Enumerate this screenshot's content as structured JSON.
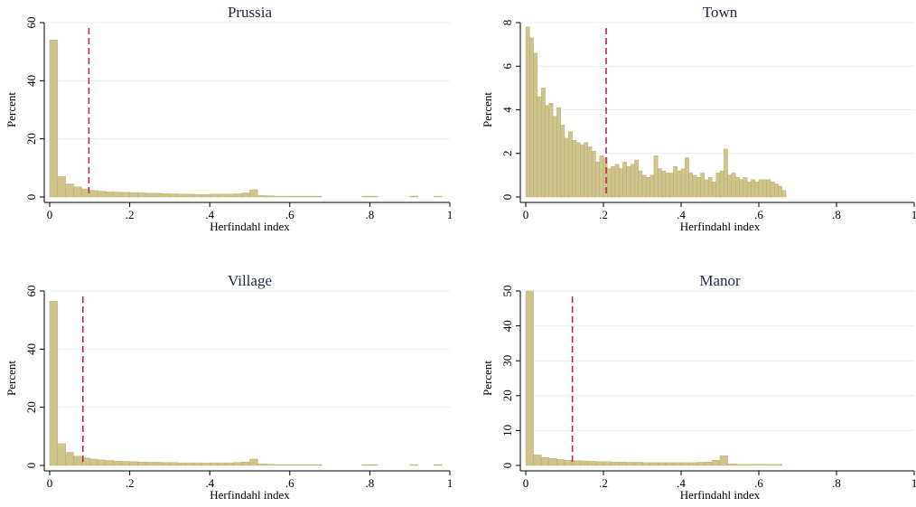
{
  "colors": {
    "bar_fill": "#cfc58c",
    "bar_stroke": "#b2a762",
    "reference_line": "#c0254f",
    "grid": "#e8eef2",
    "title": "#1e2a4a"
  },
  "chart_data": [
    {
      "type": "bar",
      "subtype": "histogram",
      "title": "Prussia",
      "xlabel": "Herfindahl index",
      "ylabel": "Percent",
      "xlim": [
        0,
        1
      ],
      "ylim": [
        0,
        60
      ],
      "xticks": [
        "0",
        ".2",
        ".4",
        ".6",
        ".8",
        "1"
      ],
      "yticks": [
        "0",
        "20",
        "40",
        "60"
      ],
      "grid": true,
      "bin_width": 0.02,
      "reference_line_x": 0.098,
      "x": [
        0.01,
        0.03,
        0.05,
        0.07,
        0.09,
        0.11,
        0.13,
        0.15,
        0.17,
        0.19,
        0.21,
        0.23,
        0.25,
        0.27,
        0.29,
        0.31,
        0.33,
        0.35,
        0.37,
        0.39,
        0.41,
        0.43,
        0.45,
        0.47,
        0.49,
        0.51,
        0.53,
        0.55,
        0.57,
        0.59,
        0.61,
        0.63,
        0.65,
        0.67,
        0.79,
        0.81,
        0.91,
        0.97
      ],
      "values": [
        54,
        7,
        4.5,
        3.5,
        2.8,
        2.3,
        2,
        1.8,
        1.7,
        1.6,
        1.5,
        1.4,
        1.3,
        1.3,
        1.2,
        1.1,
        1.0,
        1.0,
        0.9,
        0.9,
        1.0,
        1.0,
        1.0,
        1.1,
        1.4,
        2.5,
        0.5,
        0.4,
        0.3,
        0.3,
        0.3,
        0.3,
        0.3,
        0.3,
        0.3,
        0.3,
        0.3,
        0.3
      ]
    },
    {
      "type": "bar",
      "subtype": "histogram",
      "title": "Town",
      "xlabel": "Herfindahl index",
      "ylabel": "Percent",
      "xlim": [
        0,
        1
      ],
      "ylim": [
        0,
        8
      ],
      "xticks": [
        "0",
        ".2",
        ".4",
        ".6",
        ".8",
        "1"
      ],
      "yticks": [
        "0",
        "2",
        "4",
        "6",
        "8"
      ],
      "grid": true,
      "bin_width": 0.01,
      "reference_line_x": 0.207,
      "x": [
        0.005,
        0.015,
        0.025,
        0.035,
        0.045,
        0.055,
        0.065,
        0.075,
        0.085,
        0.095,
        0.105,
        0.115,
        0.125,
        0.135,
        0.145,
        0.155,
        0.165,
        0.175,
        0.185,
        0.195,
        0.205,
        0.215,
        0.225,
        0.235,
        0.245,
        0.255,
        0.265,
        0.275,
        0.285,
        0.295,
        0.305,
        0.315,
        0.325,
        0.335,
        0.345,
        0.355,
        0.365,
        0.375,
        0.385,
        0.395,
        0.405,
        0.415,
        0.425,
        0.435,
        0.445,
        0.455,
        0.465,
        0.475,
        0.485,
        0.495,
        0.505,
        0.515,
        0.525,
        0.535,
        0.545,
        0.555,
        0.565,
        0.575,
        0.585,
        0.595,
        0.605,
        0.615,
        0.625,
        0.635,
        0.645,
        0.655,
        0.665
      ],
      "values": [
        7.8,
        7.3,
        6.6,
        4.6,
        5.0,
        4.2,
        4.3,
        3.7,
        4.1,
        3.3,
        2.7,
        3.0,
        2.6,
        2.5,
        2.4,
        2.5,
        2.3,
        2.1,
        1.6,
        1.9,
        1.8,
        1.3,
        1.4,
        1.5,
        1.3,
        1.6,
        1.4,
        1.5,
        1.7,
        1.2,
        1.0,
        0.9,
        1.0,
        1.9,
        1.3,
        1.2,
        1.1,
        1.1,
        1.4,
        1.2,
        1.3,
        1.8,
        1.1,
        1.0,
        0.9,
        1.1,
        0.8,
        0.9,
        0.7,
        1.1,
        1.2,
        2.2,
        1.0,
        1.1,
        0.9,
        0.8,
        0.9,
        0.7,
        0.8,
        0.7,
        0.8,
        0.8,
        0.8,
        0.7,
        0.6,
        0.5,
        0.3
      ]
    },
    {
      "type": "bar",
      "subtype": "histogram",
      "title": "Village",
      "xlabel": "Herfindahl index",
      "ylabel": "Percent",
      "xlim": [
        0,
        1
      ],
      "ylim": [
        0,
        60
      ],
      "xticks": [
        "0",
        ".2",
        ".4",
        ".6",
        ".8",
        "1"
      ],
      "yticks": [
        "0",
        "20",
        "40",
        "60"
      ],
      "grid": true,
      "bin_width": 0.02,
      "reference_line_x": 0.083,
      "x": [
        0.01,
        0.03,
        0.05,
        0.07,
        0.09,
        0.11,
        0.13,
        0.15,
        0.17,
        0.19,
        0.21,
        0.23,
        0.25,
        0.27,
        0.29,
        0.31,
        0.33,
        0.35,
        0.37,
        0.39,
        0.41,
        0.43,
        0.45,
        0.47,
        0.49,
        0.51,
        0.53,
        0.55,
        0.57,
        0.59,
        0.61,
        0.63,
        0.65,
        0.67,
        0.79,
        0.81,
        0.91,
        0.97
      ],
      "values": [
        56.5,
        7.5,
        4.5,
        3.2,
        2.6,
        2.2,
        1.9,
        1.7,
        1.5,
        1.4,
        1.3,
        1.2,
        1.1,
        1.1,
        1.0,
        1.0,
        0.9,
        0.9,
        0.9,
        0.8,
        0.9,
        0.9,
        0.9,
        1.0,
        1.2,
        2.2,
        0.5,
        0.4,
        0.3,
        0.3,
        0.3,
        0.3,
        0.3,
        0.3,
        0.3,
        0.3,
        0.3,
        0.3
      ]
    },
    {
      "type": "bar",
      "subtype": "histogram",
      "title": "Manor",
      "xlabel": "Herfindahl index",
      "ylabel": "Percent",
      "xlim": [
        0,
        1
      ],
      "ylim": [
        0,
        50
      ],
      "xticks": [
        "0",
        ".2",
        ".4",
        ".6",
        ".8",
        "1"
      ],
      "yticks": [
        "0",
        "10",
        "20",
        "30",
        "40",
        "50"
      ],
      "grid": true,
      "bin_width": 0.02,
      "reference_line_x": 0.12,
      "x": [
        0.01,
        0.03,
        0.05,
        0.07,
        0.09,
        0.11,
        0.13,
        0.15,
        0.17,
        0.19,
        0.21,
        0.23,
        0.25,
        0.27,
        0.29,
        0.31,
        0.33,
        0.35,
        0.37,
        0.39,
        0.41,
        0.43,
        0.45,
        0.47,
        0.49,
        0.51,
        0.53,
        0.55,
        0.57,
        0.59,
        0.61,
        0.63,
        0.65
      ],
      "values": [
        50,
        3.0,
        2.3,
        2.0,
        1.7,
        1.5,
        1.4,
        1.3,
        1.2,
        1.1,
        1.1,
        1.0,
        1.0,
        0.9,
        0.9,
        0.8,
        0.8,
        0.8,
        0.8,
        0.8,
        0.8,
        0.8,
        0.9,
        1.0,
        1.5,
        2.8,
        0.4,
        0.3,
        0.3,
        0.3,
        0.3,
        0.3,
        0.3
      ]
    }
  ]
}
